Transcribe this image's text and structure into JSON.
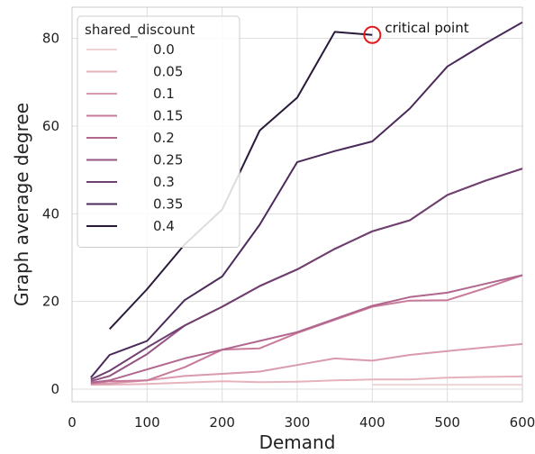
{
  "chart_data": {
    "type": "line",
    "xlabel": "Demand",
    "ylabel": "Graph average degree",
    "xlim": [
      0,
      600
    ],
    "ylim": [
      0,
      90
    ],
    "xticks": [
      0,
      100,
      200,
      300,
      400,
      500,
      600
    ],
    "yticks": [
      0,
      20,
      40,
      60,
      80
    ],
    "grid": true,
    "legend": {
      "title": "shared_discount",
      "placement": "upper-left"
    },
    "series": [
      {
        "name": "0.0",
        "color": "#f0d4d4",
        "x": [
          400,
          450,
          500,
          550,
          600
        ],
        "y": [
          1.0,
          1.0,
          1.0,
          1.0,
          1.0
        ]
      },
      {
        "name": "0.05",
        "color": "#e6b3bd",
        "x": [
          25,
          50,
          100,
          150,
          200,
          250,
          300,
          350,
          400,
          450,
          500,
          550,
          600
        ],
        "y": [
          1.0,
          1.0,
          1.2,
          1.5,
          1.8,
          1.6,
          1.7,
          2.0,
          2.2,
          2.2,
          2.6,
          2.8,
          2.9
        ]
      },
      {
        "name": "0.1",
        "color": "#d99aae",
        "x": [
          25,
          50,
          100,
          150,
          200,
          250,
          300,
          350,
          400,
          450,
          500,
          550,
          600
        ],
        "y": [
          1.1,
          1.3,
          2.0,
          3.0,
          3.5,
          4.0,
          5.5,
          7.0,
          6.5,
          7.8,
          8.7,
          9.5,
          10.3
        ]
      },
      {
        "name": "0.15",
        "color": "#c97a9a",
        "x": [
          25,
          50,
          100,
          150,
          200,
          250,
          300,
          350,
          400,
          450,
          500,
          550,
          600
        ],
        "y": [
          1.3,
          1.8,
          2.0,
          5.0,
          9.0,
          9.3,
          12.8,
          15.8,
          18.8,
          20.2,
          20.3,
          23.0,
          26.0
        ]
      },
      {
        "name": "0.2",
        "color": "#b0668e",
        "x": [
          25,
          50,
          100,
          150,
          200,
          250,
          300,
          350,
          400,
          450,
          500,
          550,
          600
        ],
        "y": [
          1.5,
          2.0,
          4.5,
          7.0,
          9.0,
          11.0,
          13.0,
          16.0,
          19.0,
          21.0,
          22.0,
          24.0,
          26.0
        ]
      },
      {
        "name": "0.25",
        "color": "#955482",
        "x": [
          25,
          50,
          100,
          150,
          200,
          250,
          300,
          350,
          400,
          450,
          500,
          550,
          600
        ],
        "y": [
          1.8,
          3.0,
          8.0,
          14.5,
          18.8,
          23.5,
          27.3,
          32.0,
          36.0,
          38.5,
          44.3,
          47.5,
          50.3
        ]
      },
      {
        "name": "0.3",
        "color": "#6e3f6f",
        "x": [
          25,
          50,
          100,
          150,
          200,
          250,
          300,
          350,
          400,
          450,
          500,
          550,
          600
        ],
        "y": [
          2.2,
          4.2,
          9.5,
          14.5,
          18.8,
          23.5,
          27.3,
          32.0,
          36.0,
          38.5,
          44.3,
          47.5,
          50.3
        ]
      },
      {
        "name": "0.35",
        "color": "#4b2a5a",
        "x": [
          25,
          50,
          100,
          150,
          200,
          250,
          300,
          350,
          400,
          450,
          500,
          550,
          600
        ],
        "y": [
          2.6,
          7.8,
          11.0,
          20.3,
          25.7,
          37.5,
          51.8,
          54.3,
          56.5,
          64.0,
          73.6,
          78.8,
          83.7
        ]
      },
      {
        "name": "0.4",
        "color": "#2a1a3a",
        "x": [
          50,
          100,
          150,
          200,
          250,
          300,
          350,
          400
        ],
        "y": [
          13.7,
          22.8,
          33.0,
          41.0,
          59.0,
          66.5,
          81.5,
          80.8
        ]
      }
    ],
    "annotations": [
      {
        "text": "critical point",
        "x": 400,
        "y": 80.8,
        "marker": "circle",
        "marker_color": "#e31a1c"
      }
    ]
  }
}
